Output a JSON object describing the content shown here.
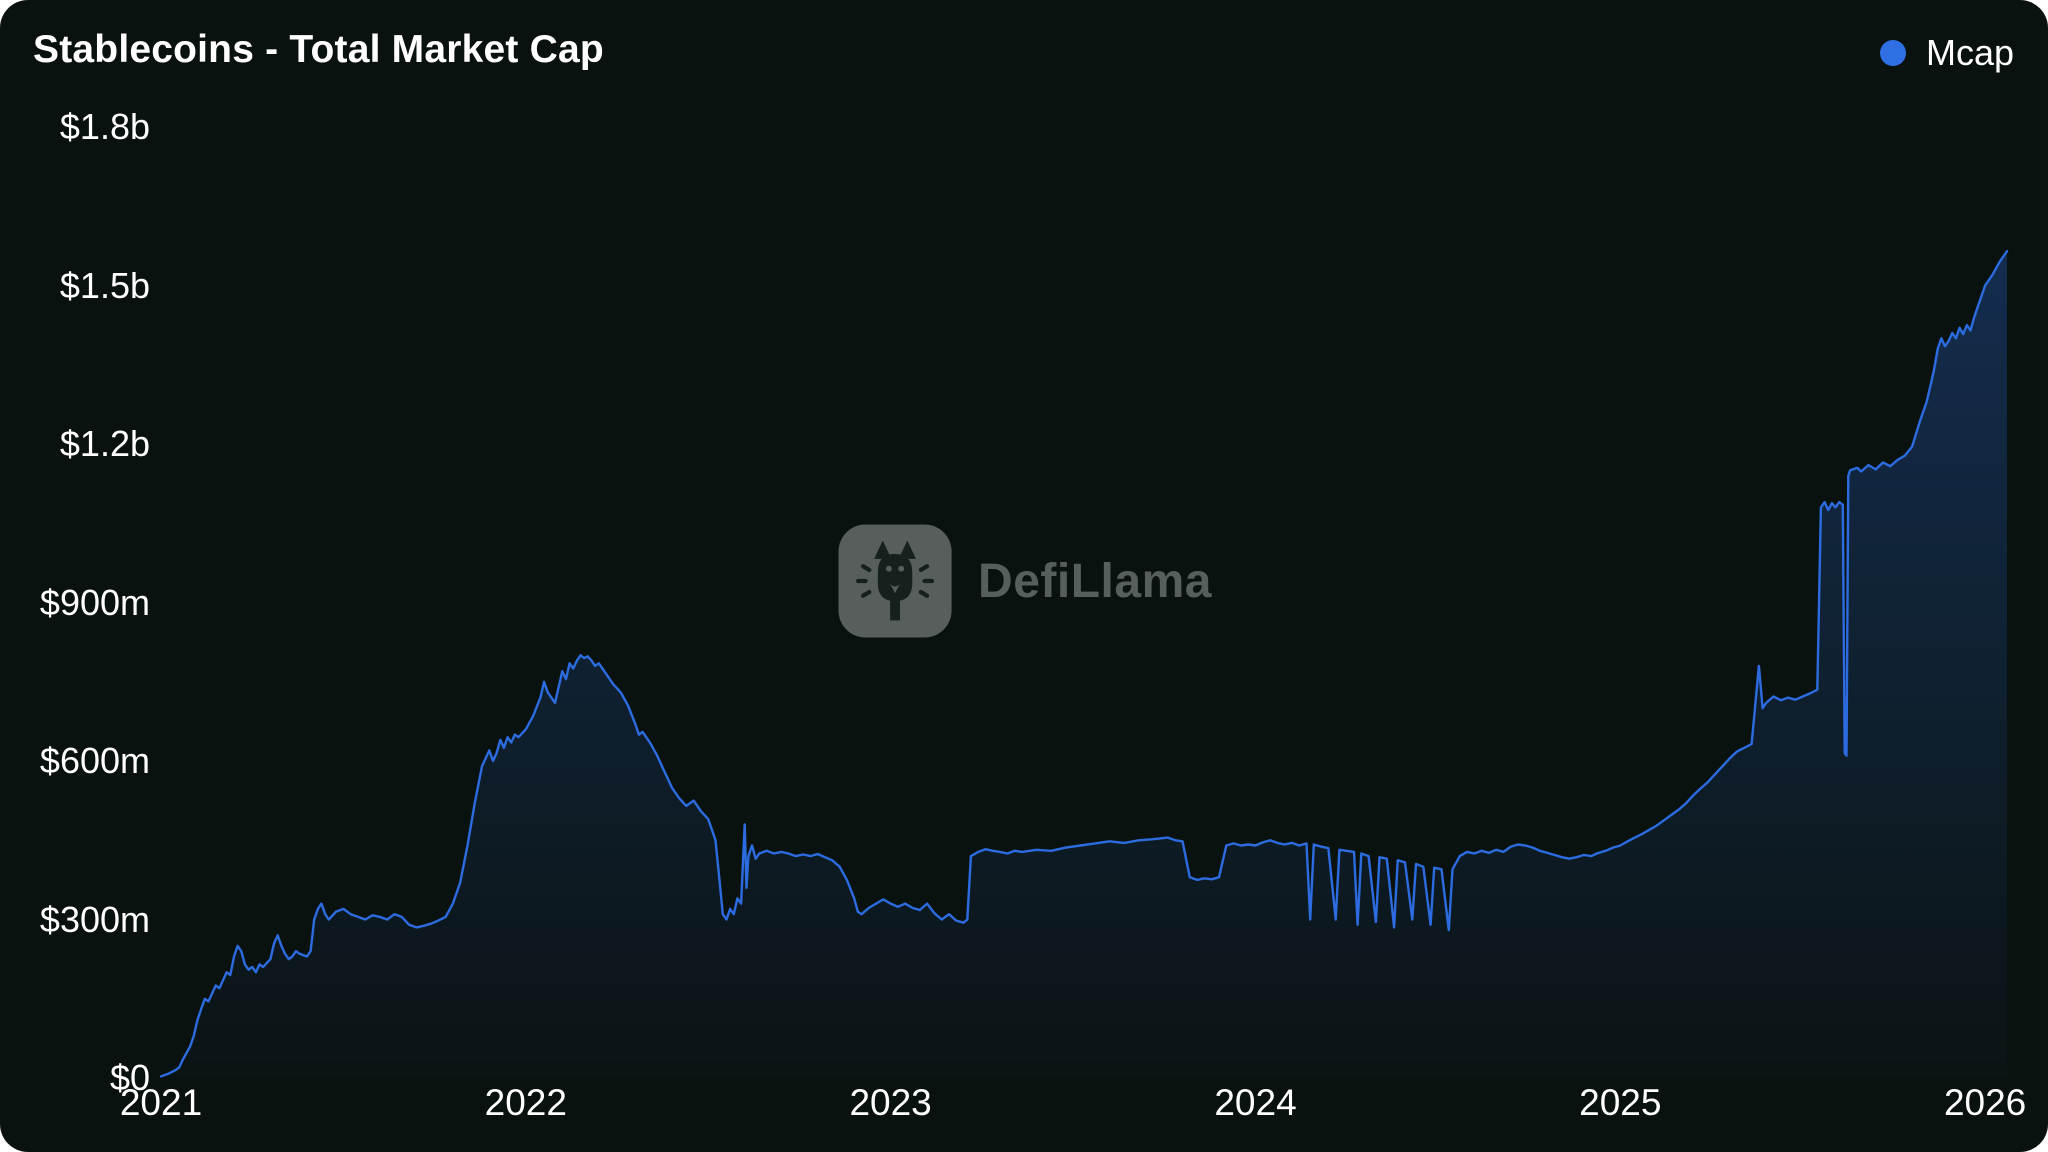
{
  "header": {
    "title": "Stablecoins - Total Market Cap",
    "legend": {
      "label": "Mcap",
      "color": "#2f6fe4"
    }
  },
  "watermark": {
    "text": "DefiLlama",
    "icon": "defillama-llama-icon"
  },
  "colors": {
    "background": "#0a1210",
    "line": "#2c6ce0",
    "area_fill": "#2b6ce0",
    "area_fill_top_opacity": 0.34,
    "area_fill_bottom_opacity": 0.02,
    "text": "#ffffff",
    "watermark_text": "#8b938f"
  },
  "chart_data": {
    "type": "area",
    "title": "Stablecoins - Total Market Cap",
    "series": [
      {
        "name": "Mcap"
      }
    ],
    "xlabel": "",
    "ylabel": "",
    "y_unit": "millions of USD",
    "xlim": [
      2021.0,
      2026.06
    ],
    "ylim": [
      0,
      1800
    ],
    "grid": false,
    "legend_position": "top-right",
    "yticks": [
      {
        "value": 0,
        "label": "$0"
      },
      {
        "value": 300,
        "label": "$300m"
      },
      {
        "value": 600,
        "label": "$600m"
      },
      {
        "value": 900,
        "label": "$900m"
      },
      {
        "value": 1200,
        "label": "$1.2b"
      },
      {
        "value": 1500,
        "label": "$1.5b"
      },
      {
        "value": 1800,
        "label": "$1.8b"
      }
    ],
    "xticks": [
      {
        "value": 2021,
        "label": "2021"
      },
      {
        "value": 2022,
        "label": "2022"
      },
      {
        "value": 2023,
        "label": "2023"
      },
      {
        "value": 2024,
        "label": "2024"
      },
      {
        "value": 2025,
        "label": "2025"
      },
      {
        "value": 2026,
        "label": "2026"
      }
    ],
    "points": [
      [
        2021.0,
        3
      ],
      [
        2021.02,
        8
      ],
      [
        2021.04,
        15
      ],
      [
        2021.05,
        20
      ],
      [
        2021.06,
        35
      ],
      [
        2021.08,
        60
      ],
      [
        2021.09,
        80
      ],
      [
        2021.1,
        110
      ],
      [
        2021.11,
        130
      ],
      [
        2021.12,
        150
      ],
      [
        2021.13,
        145
      ],
      [
        2021.14,
        160
      ],
      [
        2021.15,
        175
      ],
      [
        2021.16,
        170
      ],
      [
        2021.17,
        185
      ],
      [
        2021.18,
        200
      ],
      [
        2021.19,
        195
      ],
      [
        2021.2,
        230
      ],
      [
        2021.21,
        250
      ],
      [
        2021.22,
        240
      ],
      [
        2021.23,
        215
      ],
      [
        2021.24,
        205
      ],
      [
        2021.25,
        210
      ],
      [
        2021.26,
        200
      ],
      [
        2021.27,
        215
      ],
      [
        2021.28,
        210
      ],
      [
        2021.3,
        225
      ],
      [
        2021.31,
        255
      ],
      [
        2021.32,
        270
      ],
      [
        2021.33,
        250
      ],
      [
        2021.34,
        235
      ],
      [
        2021.35,
        225
      ],
      [
        2021.36,
        230
      ],
      [
        2021.37,
        240
      ],
      [
        2021.38,
        235
      ],
      [
        2021.4,
        230
      ],
      [
        2021.41,
        240
      ],
      [
        2021.42,
        300
      ],
      [
        2021.43,
        320
      ],
      [
        2021.44,
        330
      ],
      [
        2021.45,
        310
      ],
      [
        2021.46,
        300
      ],
      [
        2021.48,
        315
      ],
      [
        2021.5,
        320
      ],
      [
        2021.52,
        310
      ],
      [
        2021.54,
        305
      ],
      [
        2021.56,
        300
      ],
      [
        2021.58,
        308
      ],
      [
        2021.6,
        305
      ],
      [
        2021.62,
        300
      ],
      [
        2021.64,
        310
      ],
      [
        2021.66,
        305
      ],
      [
        2021.68,
        290
      ],
      [
        2021.7,
        285
      ],
      [
        2021.72,
        288
      ],
      [
        2021.74,
        292
      ],
      [
        2021.76,
        298
      ],
      [
        2021.78,
        305
      ],
      [
        2021.8,
        330
      ],
      [
        2021.82,
        370
      ],
      [
        2021.84,
        440
      ],
      [
        2021.86,
        520
      ],
      [
        2021.88,
        590
      ],
      [
        2021.9,
        620
      ],
      [
        2021.91,
        600
      ],
      [
        2021.92,
        615
      ],
      [
        2021.93,
        640
      ],
      [
        2021.94,
        625
      ],
      [
        2021.95,
        645
      ],
      [
        2021.96,
        635
      ],
      [
        2021.97,
        650
      ],
      [
        2021.98,
        645
      ],
      [
        2022.0,
        660
      ],
      [
        2022.02,
        685
      ],
      [
        2022.04,
        720
      ],
      [
        2022.05,
        750
      ],
      [
        2022.06,
        730
      ],
      [
        2022.08,
        710
      ],
      [
        2022.09,
        740
      ],
      [
        2022.1,
        770
      ],
      [
        2022.11,
        755
      ],
      [
        2022.12,
        785
      ],
      [
        2022.13,
        775
      ],
      [
        2022.14,
        790
      ],
      [
        2022.15,
        800
      ],
      [
        2022.16,
        795
      ],
      [
        2022.17,
        798
      ],
      [
        2022.18,
        790
      ],
      [
        2022.19,
        780
      ],
      [
        2022.2,
        785
      ],
      [
        2022.22,
        765
      ],
      [
        2022.24,
        745
      ],
      [
        2022.26,
        730
      ],
      [
        2022.28,
        705
      ],
      [
        2022.3,
        670
      ],
      [
        2022.31,
        650
      ],
      [
        2022.32,
        655
      ],
      [
        2022.34,
        635
      ],
      [
        2022.36,
        610
      ],
      [
        2022.38,
        580
      ],
      [
        2022.4,
        550
      ],
      [
        2022.42,
        530
      ],
      [
        2022.44,
        515
      ],
      [
        2022.46,
        525
      ],
      [
        2022.48,
        505
      ],
      [
        2022.5,
        490
      ],
      [
        2022.51,
        470
      ],
      [
        2022.52,
        450
      ],
      [
        2022.53,
        380
      ],
      [
        2022.54,
        310
      ],
      [
        2022.55,
        300
      ],
      [
        2022.56,
        320
      ],
      [
        2022.57,
        310
      ],
      [
        2022.58,
        340
      ],
      [
        2022.59,
        330
      ],
      [
        2022.6,
        480
      ],
      [
        2022.605,
        360
      ],
      [
        2022.61,
        420
      ],
      [
        2022.62,
        440
      ],
      [
        2022.63,
        415
      ],
      [
        2022.64,
        425
      ],
      [
        2022.66,
        430
      ],
      [
        2022.68,
        425
      ],
      [
        2022.7,
        428
      ],
      [
        2022.72,
        425
      ],
      [
        2022.74,
        420
      ],
      [
        2022.76,
        423
      ],
      [
        2022.78,
        420
      ],
      [
        2022.8,
        424
      ],
      [
        2022.82,
        418
      ],
      [
        2022.84,
        412
      ],
      [
        2022.86,
        400
      ],
      [
        2022.88,
        375
      ],
      [
        2022.9,
        340
      ],
      [
        2022.91,
        315
      ],
      [
        2022.92,
        310
      ],
      [
        2022.94,
        322
      ],
      [
        2022.96,
        330
      ],
      [
        2022.98,
        338
      ],
      [
        2023.0,
        330
      ],
      [
        2023.02,
        324
      ],
      [
        2023.04,
        330
      ],
      [
        2023.06,
        322
      ],
      [
        2023.08,
        318
      ],
      [
        2023.1,
        330
      ],
      [
        2023.12,
        312
      ],
      [
        2023.14,
        300
      ],
      [
        2023.16,
        310
      ],
      [
        2023.18,
        298
      ],
      [
        2023.2,
        294
      ],
      [
        2023.21,
        300
      ],
      [
        2023.22,
        420
      ],
      [
        2023.24,
        428
      ],
      [
        2023.26,
        433
      ],
      [
        2023.28,
        430
      ],
      [
        2023.3,
        428
      ],
      [
        2023.32,
        425
      ],
      [
        2023.34,
        430
      ],
      [
        2023.36,
        428
      ],
      [
        2023.4,
        432
      ],
      [
        2023.44,
        430
      ],
      [
        2023.48,
        436
      ],
      [
        2023.52,
        440
      ],
      [
        2023.56,
        444
      ],
      [
        2023.6,
        448
      ],
      [
        2023.64,
        445
      ],
      [
        2023.68,
        450
      ],
      [
        2023.72,
        452
      ],
      [
        2023.76,
        455
      ],
      [
        2023.78,
        450
      ],
      [
        2023.8,
        448
      ],
      [
        2023.82,
        380
      ],
      [
        2023.84,
        375
      ],
      [
        2023.86,
        378
      ],
      [
        2023.88,
        376
      ],
      [
        2023.9,
        380
      ],
      [
        2023.92,
        440
      ],
      [
        2023.94,
        444
      ],
      [
        2023.96,
        440
      ],
      [
        2023.98,
        442
      ],
      [
        2024.0,
        440
      ],
      [
        2024.02,
        446
      ],
      [
        2024.04,
        450
      ],
      [
        2024.06,
        445
      ],
      [
        2024.08,
        442
      ],
      [
        2024.1,
        445
      ],
      [
        2024.12,
        440
      ],
      [
        2024.14,
        444
      ],
      [
        2024.15,
        300
      ],
      [
        2024.16,
        442
      ],
      [
        2024.18,
        438
      ],
      [
        2024.2,
        435
      ],
      [
        2024.22,
        300
      ],
      [
        2024.23,
        432
      ],
      [
        2024.25,
        430
      ],
      [
        2024.27,
        428
      ],
      [
        2024.28,
        290
      ],
      [
        2024.29,
        425
      ],
      [
        2024.31,
        420
      ],
      [
        2024.33,
        295
      ],
      [
        2024.34,
        418
      ],
      [
        2024.36,
        415
      ],
      [
        2024.38,
        285
      ],
      [
        2024.39,
        412
      ],
      [
        2024.41,
        408
      ],
      [
        2024.43,
        300
      ],
      [
        2024.44,
        405
      ],
      [
        2024.46,
        400
      ],
      [
        2024.48,
        290
      ],
      [
        2024.49,
        398
      ],
      [
        2024.51,
        395
      ],
      [
        2024.53,
        280
      ],
      [
        2024.54,
        395
      ],
      [
        2024.56,
        420
      ],
      [
        2024.58,
        428
      ],
      [
        2024.6,
        425
      ],
      [
        2024.62,
        430
      ],
      [
        2024.64,
        426
      ],
      [
        2024.66,
        432
      ],
      [
        2024.68,
        428
      ],
      [
        2024.7,
        438
      ],
      [
        2024.72,
        442
      ],
      [
        2024.74,
        440
      ],
      [
        2024.76,
        436
      ],
      [
        2024.78,
        430
      ],
      [
        2024.8,
        426
      ],
      [
        2024.82,
        422
      ],
      [
        2024.84,
        418
      ],
      [
        2024.86,
        415
      ],
      [
        2024.88,
        418
      ],
      [
        2024.9,
        422
      ],
      [
        2024.92,
        420
      ],
      [
        2024.94,
        426
      ],
      [
        2024.96,
        430
      ],
      [
        2024.98,
        436
      ],
      [
        2025.0,
        440
      ],
      [
        2025.02,
        448
      ],
      [
        2025.04,
        455
      ],
      [
        2025.06,
        462
      ],
      [
        2025.08,
        470
      ],
      [
        2025.1,
        478
      ],
      [
        2025.12,
        488
      ],
      [
        2025.14,
        498
      ],
      [
        2025.16,
        508
      ],
      [
        2025.18,
        520
      ],
      [
        2025.2,
        535
      ],
      [
        2025.22,
        548
      ],
      [
        2025.24,
        560
      ],
      [
        2025.26,
        575
      ],
      [
        2025.28,
        590
      ],
      [
        2025.3,
        605
      ],
      [
        2025.32,
        618
      ],
      [
        2025.34,
        625
      ],
      [
        2025.36,
        632
      ],
      [
        2025.38,
        780
      ],
      [
        2025.39,
        700
      ],
      [
        2025.4,
        710
      ],
      [
        2025.42,
        722
      ],
      [
        2025.44,
        715
      ],
      [
        2025.46,
        720
      ],
      [
        2025.48,
        716
      ],
      [
        2025.5,
        722
      ],
      [
        2025.52,
        728
      ],
      [
        2025.54,
        735
      ],
      [
        2025.55,
        1080
      ],
      [
        2025.56,
        1090
      ],
      [
        2025.57,
        1075
      ],
      [
        2025.58,
        1088
      ],
      [
        2025.59,
        1080
      ],
      [
        2025.6,
        1090
      ],
      [
        2025.61,
        1085
      ],
      [
        2025.615,
        615
      ],
      [
        2025.62,
        610
      ],
      [
        2025.625,
        1140
      ],
      [
        2025.63,
        1150
      ],
      [
        2025.65,
        1155
      ],
      [
        2025.66,
        1148
      ],
      [
        2025.68,
        1160
      ],
      [
        2025.7,
        1152
      ],
      [
        2025.72,
        1165
      ],
      [
        2025.74,
        1158
      ],
      [
        2025.76,
        1170
      ],
      [
        2025.78,
        1178
      ],
      [
        2025.8,
        1195
      ],
      [
        2025.82,
        1240
      ],
      [
        2025.84,
        1280
      ],
      [
        2025.85,
        1310
      ],
      [
        2025.86,
        1340
      ],
      [
        2025.87,
        1380
      ],
      [
        2025.88,
        1400
      ],
      [
        2025.89,
        1385
      ],
      [
        2025.9,
        1395
      ],
      [
        2025.91,
        1410
      ],
      [
        2025.92,
        1400
      ],
      [
        2025.93,
        1420
      ],
      [
        2025.94,
        1408
      ],
      [
        2025.95,
        1425
      ],
      [
        2025.96,
        1415
      ],
      [
        2025.97,
        1440
      ],
      [
        2025.98,
        1460
      ],
      [
        2025.99,
        1480
      ],
      [
        2026.0,
        1500
      ],
      [
        2026.02,
        1520
      ],
      [
        2026.04,
        1545
      ],
      [
        2026.06,
        1565
      ]
    ]
  }
}
